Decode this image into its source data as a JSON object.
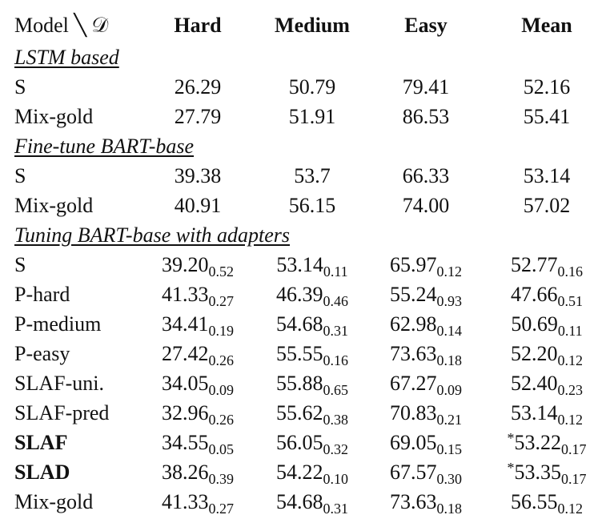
{
  "header": [
    "Model ╲ 𝒟",
    "Hard",
    "Medium",
    "Easy",
    "Mean"
  ],
  "sections": [
    {
      "title": "LSTM based",
      "rows": [
        {
          "label": "S",
          "cells": [
            {
              "value": "26.29"
            },
            {
              "value": "50.79"
            },
            {
              "value": "79.41"
            },
            {
              "value": "52.16"
            }
          ]
        },
        {
          "label": "Mix-gold",
          "cells": [
            {
              "value": "27.79"
            },
            {
              "value": "51.91"
            },
            {
              "value": "86.53"
            },
            {
              "value": "55.41"
            }
          ]
        }
      ]
    },
    {
      "title": "Fine-tune BART-base",
      "rows": [
        {
          "label": "S",
          "cells": [
            {
              "value": "39.38"
            },
            {
              "value": "53.7"
            },
            {
              "value": "66.33"
            },
            {
              "value": "53.14"
            }
          ]
        },
        {
          "label": "Mix-gold",
          "cells": [
            {
              "value": "40.91"
            },
            {
              "value": "56.15"
            },
            {
              "value": "74.00"
            },
            {
              "value": "57.02"
            }
          ]
        }
      ]
    },
    {
      "title": "Tuning BART-base with adapters",
      "rows": [
        {
          "label": "S",
          "cells": [
            {
              "value": "39.20",
              "sub": "0.52"
            },
            {
              "value": "53.14",
              "sub": "0.11"
            },
            {
              "value": "65.97",
              "sub": "0.12"
            },
            {
              "value": "52.77",
              "sub": "0.16"
            }
          ]
        },
        {
          "label": "P-hard",
          "cells": [
            {
              "value": "41.33",
              "sub": "0.27"
            },
            {
              "value": "46.39",
              "sub": "0.46"
            },
            {
              "value": "55.24",
              "sub": "0.93"
            },
            {
              "value": "47.66",
              "sub": "0.51"
            }
          ]
        },
        {
          "label": "P-medium",
          "cells": [
            {
              "value": "34.41",
              "sub": "0.19"
            },
            {
              "value": "54.68",
              "sub": "0.31"
            },
            {
              "value": "62.98",
              "sub": "0.14"
            },
            {
              "value": "50.69",
              "sub": "0.11"
            }
          ]
        },
        {
          "label": "P-easy",
          "cells": [
            {
              "value": "27.42",
              "sub": "0.26"
            },
            {
              "value": "55.55",
              "sub": "0.16"
            },
            {
              "value": "73.63",
              "sub": "0.18"
            },
            {
              "value": "52.20",
              "sub": "0.12"
            }
          ]
        },
        {
          "label": "SLAF-uni.",
          "cells": [
            {
              "value": "34.05",
              "sub": "0.09"
            },
            {
              "value": "55.88",
              "sub": "0.65"
            },
            {
              "value": "67.27",
              "sub": "0.09"
            },
            {
              "value": "52.40",
              "sub": "0.23"
            }
          ]
        },
        {
          "label": "SLAF-pred",
          "cells": [
            {
              "value": "32.96",
              "sub": "0.26"
            },
            {
              "value": "55.62",
              "sub": "0.38"
            },
            {
              "value": "70.83",
              "sub": "0.21"
            },
            {
              "value": "53.14",
              "sub": "0.12"
            }
          ]
        },
        {
          "label": "SLAF",
          "bold": true,
          "cells": [
            {
              "value": "34.55",
              "sub": "0.05"
            },
            {
              "value": "56.05",
              "sub": "0.32"
            },
            {
              "value": "69.05",
              "sub": "0.15"
            },
            {
              "prefix": "*",
              "value": "53.22",
              "sub": "0.17"
            }
          ]
        },
        {
          "label": "SLAD",
          "bold": true,
          "cells": [
            {
              "value": "38.26",
              "sub": "0.39"
            },
            {
              "value": "54.22",
              "sub": "0.10"
            },
            {
              "value": "67.57",
              "sub": "0.30"
            },
            {
              "prefix": "*",
              "value": "53.35",
              "sub": "0.17"
            }
          ]
        },
        {
          "label": "Mix-gold",
          "cells": [
            {
              "value": "41.33",
              "sub": "0.27"
            },
            {
              "value": "54.68",
              "sub": "0.31"
            },
            {
              "value": "73.63",
              "sub": "0.18"
            },
            {
              "value": "56.55",
              "sub": "0.12"
            }
          ]
        }
      ]
    }
  ]
}
